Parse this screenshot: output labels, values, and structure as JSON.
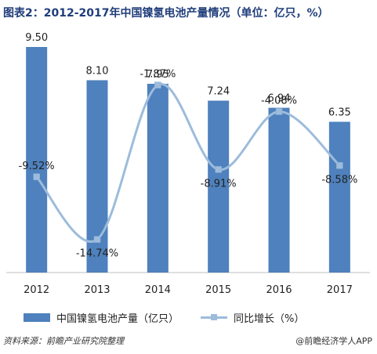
{
  "chart_data": {
    "type": "bar",
    "title": "图表2：2012-2017年中国镍氢电池产量情况（单位：亿只，%）",
    "categories": [
      "2012",
      "2013",
      "2014",
      "2015",
      "2016",
      "2017"
    ],
    "series": [
      {
        "name": "中国镍氢电池产量（亿只）",
        "type": "bar",
        "values": [
          9.5,
          8.1,
          7.95,
          7.24,
          6.94,
          6.35
        ],
        "color": "#4e81bd"
      },
      {
        "name": "同比增长（%）",
        "type": "line",
        "values": [
          -9.52,
          -14.74,
          -1.87,
          -8.91,
          -4.08,
          -8.58
        ],
        "color": "#9dbcdc"
      }
    ],
    "bar_labels": [
      "9.50",
      "8.10",
      "7.95",
      "7.24",
      "6.94",
      "6.35"
    ],
    "line_labels": [
      "-9.52%",
      "-14.74%",
      "-1.87%",
      "-8.91%",
      "-4.08%",
      "-8.58%"
    ],
    "bar_ylim": [
      0,
      9.5
    ],
    "line_ylim": [
      -16,
      0
    ],
    "grid": false,
    "legend_position": "bottom"
  },
  "source": "资料来源：前瞻产业研究院整理",
  "watermark": "@前瞻经济学人APP"
}
